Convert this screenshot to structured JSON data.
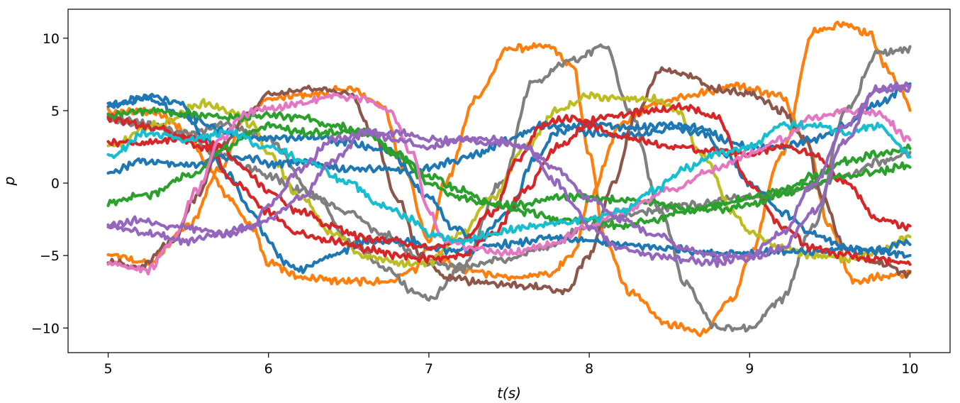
{
  "chart_data": {
    "type": "line",
    "title": "",
    "xlabel": "t(s)",
    "ylabel": "p",
    "xlim": [
      4.75,
      10.25
    ],
    "ylim": [
      -11.7,
      12.0
    ],
    "xticks": [
      5,
      6,
      7,
      8,
      9,
      10
    ],
    "yticks": [
      -10,
      -5,
      0,
      5,
      10
    ],
    "xtick_labels": [
      "5",
      "6",
      "7",
      "8",
      "9",
      "10"
    ],
    "ytick_labels": [
      "−10",
      "−5",
      "0",
      "5",
      "10"
    ],
    "grid": false,
    "legend": "none",
    "noise_amplitude": 0.18,
    "series": [
      {
        "color": "#ff7f0e",
        "x": [
          5.0,
          5.25,
          5.5,
          5.7,
          5.85,
          6.0,
          6.25,
          6.5,
          6.7,
          6.85,
          7.0,
          7.1,
          7.3,
          7.5,
          7.75,
          7.9,
          8.0,
          8.1,
          8.25,
          8.5,
          8.7,
          8.9,
          9.0,
          9.2,
          9.4,
          9.6,
          9.75,
          9.85,
          9.95,
          10.0
        ],
        "y": [
          -5.0,
          -5.5,
          -3.0,
          1.0,
          4.5,
          5.8,
          6.1,
          6.5,
          5.5,
          1.0,
          -4.0,
          0.0,
          6.0,
          9.3,
          9.4,
          8.0,
          2.0,
          -4.0,
          -7.5,
          -9.8,
          -10.3,
          -8.0,
          -5.0,
          2.0,
          10.5,
          11.0,
          10.3,
          8.0,
          6.5,
          5.0
        ]
      },
      {
        "color": "#ff7f0e",
        "x": [
          5.0,
          5.3,
          5.5,
          5.6,
          5.75,
          5.9,
          6.0,
          6.2,
          6.5,
          6.75,
          6.9,
          7.0,
          7.2,
          7.5,
          7.75,
          7.9,
          8.0,
          8.2,
          8.4,
          8.6,
          8.75,
          8.9,
          9.0,
          9.2,
          9.35,
          9.5,
          9.65,
          9.8,
          10.0
        ],
        "y": [
          4.9,
          4.9,
          3.5,
          1.5,
          -1.0,
          -3.0,
          -5.5,
          -6.5,
          -6.8,
          -6.8,
          -6.0,
          -4.5,
          -6.0,
          -6.5,
          -6.3,
          -5.0,
          -1.0,
          4.0,
          5.5,
          6.0,
          6.3,
          6.8,
          6.5,
          6.0,
          3.0,
          -3.0,
          -6.8,
          -6.5,
          -6.2
        ]
      },
      {
        "color": "#7f7f7f",
        "x": [
          5.0,
          5.5,
          5.75,
          6.0,
          6.3,
          6.5,
          6.75,
          6.9,
          7.0,
          7.2,
          7.45,
          7.65,
          7.9,
          8.1,
          8.25,
          8.45,
          8.6,
          8.8,
          9.0,
          9.2,
          9.4,
          9.6,
          9.8,
          10.0
        ],
        "y": [
          4.5,
          3.5,
          4.0,
          3.0,
          -1.0,
          -4.0,
          -6.0,
          -7.5,
          -8.0,
          -6.0,
          0.0,
          7.0,
          8.5,
          9.5,
          5.0,
          -2.0,
          -7.0,
          -10.0,
          -10.0,
          -8.0,
          -3.0,
          5.0,
          9.0,
          9.3
        ]
      },
      {
        "color": "#7f7f7f",
        "x": [
          5.0,
          5.3,
          5.5,
          5.7,
          5.9,
          6.0,
          6.2,
          6.5,
          6.7,
          7.0,
          7.2,
          7.5,
          7.7,
          8.0,
          8.3,
          8.6,
          9.0,
          9.3,
          9.6,
          9.8,
          10.0
        ],
        "y": [
          4.3,
          4.0,
          3.0,
          2.0,
          1.0,
          0.5,
          -0.5,
          -2.0,
          -3.5,
          -5.5,
          -5.8,
          -5.2,
          -4.5,
          -3.0,
          -2.0,
          -1.5,
          -1.0,
          -0.5,
          0.5,
          1.5,
          2.0
        ]
      },
      {
        "color": "#8c564b",
        "x": [
          5.0,
          5.2,
          5.4,
          5.55,
          5.7,
          5.9,
          6.0,
          6.25,
          6.5,
          6.65,
          6.8,
          6.95,
          7.1,
          7.3,
          7.5,
          7.7,
          7.85,
          8.0,
          8.15,
          8.3,
          8.45,
          8.6,
          8.8,
          9.0,
          9.2,
          9.35,
          9.45,
          9.6,
          9.8,
          10.0
        ],
        "y": [
          -5.5,
          -5.8,
          -4.0,
          -1.0,
          2.5,
          5.0,
          6.2,
          6.5,
          6.2,
          3.5,
          -1.0,
          -5.0,
          -6.5,
          -6.8,
          -7.0,
          -7.2,
          -7.5,
          -5.0,
          0.0,
          5.0,
          7.8,
          7.5,
          6.5,
          6.2,
          5.0,
          3.0,
          -1.0,
          -4.5,
          -5.5,
          -6.3
        ]
      },
      {
        "color": "#bcbd22",
        "x": [
          5.0,
          5.3,
          5.6,
          5.75,
          5.9,
          6.0,
          6.2,
          6.4,
          6.6,
          6.8,
          7.0,
          7.2,
          7.4,
          7.6,
          7.8,
          8.0,
          8.2,
          8.4,
          8.55,
          8.7,
          8.9,
          9.0,
          9.2,
          9.4,
          9.6,
          9.8,
          10.0
        ],
        "y": [
          2.5,
          4.0,
          5.5,
          5.0,
          4.0,
          2.0,
          -1.0,
          -3.5,
          -5.0,
          -5.5,
          -5.5,
          -3.5,
          -1.0,
          2.5,
          5.0,
          6.0,
          5.8,
          5.8,
          5.0,
          2.0,
          -2.0,
          -3.5,
          -4.5,
          -5.0,
          -5.2,
          -4.8,
          -3.7
        ]
      },
      {
        "color": "#1f77b4",
        "x": [
          5.0,
          5.25,
          5.45,
          5.6,
          5.75,
          5.9,
          6.0,
          6.1,
          6.2,
          6.4,
          6.6,
          6.9,
          7.0,
          7.2,
          7.5,
          7.75,
          8.0,
          8.25,
          8.5,
          8.75,
          9.0,
          9.2,
          9.4,
          9.6,
          9.8,
          10.0
        ],
        "y": [
          5.3,
          6.0,
          5.5,
          3.0,
          0.5,
          -2.0,
          -4.0,
          -5.5,
          -6.0,
          -5.0,
          -4.0,
          -4.0,
          -4.5,
          -4.7,
          -4.2,
          -3.8,
          -4.0,
          -4.3,
          -4.5,
          -4.8,
          -4.8,
          -4.7,
          -4.8,
          -4.5,
          -4.6,
          -5.0
        ]
      },
      {
        "color": "#1f77b4",
        "x": [
          5.0,
          5.2,
          5.5,
          5.7,
          5.9,
          6.0,
          6.2,
          6.5,
          6.7,
          6.85,
          7.0,
          7.15,
          7.3,
          7.5,
          7.6,
          7.7,
          7.85,
          8.0,
          8.2,
          8.4,
          8.5,
          8.7,
          8.85,
          9.0,
          9.2,
          9.4,
          9.6,
          9.8,
          10.0
        ],
        "y": [
          0.7,
          1.5,
          1.2,
          1.8,
          1.7,
          1.3,
          1.5,
          1.0,
          1.0,
          0.8,
          1.0,
          1.5,
          2.0,
          3.0,
          3.5,
          4.0,
          4.0,
          3.5,
          3.2,
          3.5,
          3.8,
          3.5,
          2.0,
          0.0,
          -2.0,
          -3.5,
          -4.5,
          -4.7,
          -4.0
        ]
      },
      {
        "color": "#1f77b4",
        "x": [
          5.0,
          5.25,
          5.5,
          5.75,
          6.0,
          6.25,
          6.5,
          6.75,
          7.0,
          7.15,
          7.3,
          7.5,
          7.65,
          7.8,
          7.95,
          8.1,
          8.3,
          8.5,
          8.7,
          8.85,
          9.0,
          9.2,
          9.4,
          9.6,
          9.8,
          10.0
        ],
        "y": [
          5.4,
          5.8,
          4.5,
          3.5,
          3.0,
          3.2,
          2.8,
          2.2,
          -1.0,
          -3.0,
          -4.0,
          -2.0,
          1.5,
          3.5,
          4.0,
          4.0,
          3.8,
          4.0,
          3.8,
          3.0,
          2.5,
          2.5,
          3.0,
          4.0,
          5.5,
          6.8
        ]
      },
      {
        "color": "#d62728",
        "x": [
          5.0,
          5.25,
          5.5,
          5.7,
          5.85,
          6.0,
          6.2,
          6.4,
          6.6,
          6.8,
          7.0,
          7.2,
          7.4,
          7.55,
          7.7,
          7.85,
          8.0,
          8.2,
          8.4,
          8.6,
          8.8,
          9.0,
          9.2,
          9.4,
          9.6,
          9.8,
          10.0
        ],
        "y": [
          2.8,
          2.8,
          3.2,
          2.5,
          1.0,
          -0.5,
          -2.0,
          -3.0,
          -3.8,
          -4.0,
          -4.5,
          -4.0,
          -2.0,
          1.5,
          4.0,
          4.5,
          4.3,
          4.7,
          5.0,
          5.3,
          4.5,
          0.0,
          -3.0,
          -4.5,
          -5.0,
          -5.3,
          -5.5
        ]
      },
      {
        "color": "#d62728",
        "x": [
          5.0,
          5.3,
          5.6,
          5.8,
          6.0,
          6.2,
          6.4,
          6.6,
          6.8,
          7.0,
          7.2,
          7.4,
          7.6,
          7.8,
          8.0,
          8.2,
          8.5,
          8.8,
          9.0,
          9.2,
          9.4,
          9.6,
          9.8,
          10.0
        ],
        "y": [
          4.5,
          3.8,
          2.5,
          0.0,
          -2.0,
          -3.5,
          -4.0,
          -4.5,
          -5.0,
          -5.2,
          -5.0,
          -3.5,
          -0.5,
          2.5,
          4.0,
          3.2,
          2.5,
          2.2,
          2.0,
          2.5,
          2.0,
          0.0,
          -2.5,
          -3.0
        ]
      },
      {
        "color": "#2ca02c",
        "x": [
          5.0,
          5.25,
          5.5,
          5.75,
          5.9,
          6.0,
          6.2,
          6.4,
          6.6,
          6.8,
          7.0,
          7.2,
          7.4,
          7.6,
          7.8,
          8.0,
          8.2,
          8.4,
          8.6,
          8.8,
          9.0,
          9.2,
          9.4,
          9.6,
          9.8,
          10.0
        ],
        "y": [
          -1.3,
          -0.8,
          0.5,
          2.5,
          3.5,
          4.0,
          3.5,
          3.5,
          3.5,
          2.0,
          0.0,
          -1.0,
          -1.5,
          -1.5,
          -1.0,
          -1.0,
          -1.2,
          -1.3,
          -1.8,
          -1.8,
          -1.5,
          -0.8,
          0.0,
          0.5,
          0.8,
          1.2
        ]
      },
      {
        "color": "#2ca02c",
        "x": [
          5.0,
          5.25,
          5.5,
          5.75,
          6.0,
          6.2,
          6.4,
          6.6,
          6.8,
          7.0,
          7.2,
          7.4,
          7.6,
          7.8,
          8.0,
          8.2,
          8.4,
          8.6,
          8.8,
          9.0,
          9.2,
          9.4,
          9.6,
          9.8,
          10.0
        ],
        "y": [
          4.7,
          5.0,
          4.8,
          4.5,
          4.7,
          4.5,
          4.0,
          3.5,
          2.0,
          0.5,
          -0.5,
          -1.5,
          -2.0,
          -2.5,
          -2.5,
          -3.0,
          -2.5,
          -2.0,
          -1.5,
          -1.0,
          -0.5,
          0.5,
          1.5,
          2.0,
          2.4
        ]
      },
      {
        "color": "#e377c2",
        "x": [
          5.0,
          5.25,
          5.4,
          5.55,
          5.7,
          5.85,
          6.0,
          6.2,
          6.4,
          6.6,
          6.75,
          6.9,
          7.0,
          7.1,
          7.3,
          7.5,
          7.75,
          8.0,
          8.2,
          8.5,
          8.8,
          9.0,
          9.2,
          9.4,
          9.6,
          9.8,
          10.0
        ],
        "y": [
          -5.5,
          -6.0,
          -4.0,
          -0.5,
          3.0,
          4.8,
          5.2,
          5.5,
          6.0,
          5.8,
          5.0,
          2.0,
          -2.0,
          -4.0,
          -4.5,
          -4.8,
          -4.3,
          -3.0,
          -2.0,
          -0.5,
          1.0,
          2.0,
          3.0,
          4.5,
          5.0,
          4.8,
          3.0
        ]
      },
      {
        "color": "#17becf",
        "x": [
          5.0,
          5.25,
          5.5,
          5.75,
          6.0,
          6.25,
          6.5,
          6.7,
          6.9,
          7.0,
          7.2,
          7.4,
          7.6,
          7.8,
          8.0,
          8.2,
          8.4,
          8.6,
          8.8,
          9.0,
          9.2,
          9.4,
          9.6,
          9.8,
          10.0
        ],
        "y": [
          1.8,
          3.5,
          3.0,
          3.5,
          2.5,
          1.5,
          0.0,
          -1.5,
          -2.5,
          -3.5,
          -4.0,
          -3.5,
          -3.0,
          -2.8,
          -2.5,
          -2.0,
          -0.5,
          1.0,
          2.0,
          2.5,
          4.0,
          4.0,
          3.5,
          4.0,
          2.0
        ]
      },
      {
        "color": "#9467bd",
        "x": [
          5.0,
          5.25,
          5.5,
          5.7,
          5.9,
          6.0,
          6.2,
          6.4,
          6.6,
          6.8,
          7.0,
          7.2,
          7.4,
          7.6,
          7.8,
          8.0,
          8.2,
          8.4,
          8.6,
          8.8,
          9.0,
          9.2,
          9.4,
          9.6,
          9.8,
          10.0
        ],
        "y": [
          -3.0,
          -3.5,
          -4.0,
          -3.5,
          -3.0,
          -2.5,
          -1.0,
          1.5,
          3.5,
          3.5,
          3.0,
          3.0,
          2.8,
          2.5,
          1.0,
          -1.0,
          -2.5,
          -3.5,
          -4.5,
          -5.0,
          -5.2,
          -4.5,
          -2.0,
          3.0,
          6.5,
          6.8
        ]
      },
      {
        "color": "#9467bd",
        "x": [
          5.0,
          5.2,
          5.4,
          5.6,
          5.75,
          5.9,
          6.0,
          6.2,
          6.4,
          6.6,
          6.8,
          7.0,
          7.2,
          7.4,
          7.6,
          7.8,
          7.9,
          8.0,
          8.2,
          8.4,
          8.6,
          8.8,
          9.0,
          9.2,
          9.4,
          9.6,
          9.8,
          10.0
        ],
        "y": [
          -3.0,
          -2.5,
          -3.0,
          -3.2,
          -3.5,
          -3.0,
          -1.5,
          1.0,
          3.0,
          3.5,
          3.0,
          2.5,
          3.0,
          3.0,
          2.5,
          0.0,
          -1.5,
          -3.0,
          -4.5,
          -5.0,
          -5.3,
          -5.5,
          -5.0,
          -3.5,
          0.0,
          4.0,
          6.5,
          6.5
        ]
      }
    ]
  }
}
